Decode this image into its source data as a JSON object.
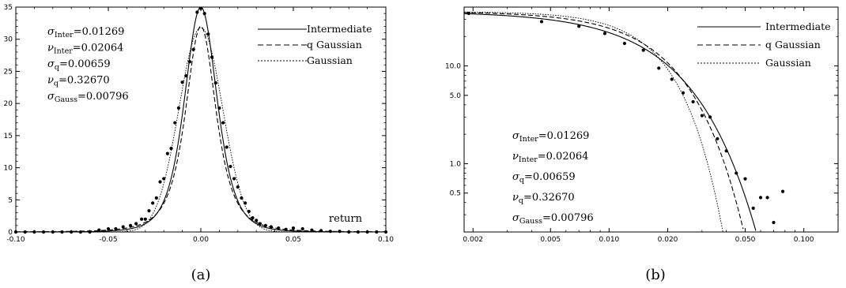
{
  "chart_data": [
    {
      "type": "line",
      "panel": "a",
      "caption": "(a)",
      "xlabel": "return",
      "ylabel": "",
      "xlim": [
        -0.1,
        0.1
      ],
      "ylim": [
        0,
        35
      ],
      "x_ticks": [
        "-0.10",
        "-0.05",
        "0.00",
        "0.05",
        "0.10"
      ],
      "y_ticks": [
        "0",
        "5",
        "10",
        "15",
        "20",
        "25",
        "30",
        "35"
      ],
      "legend_position": "top-right",
      "annotations": [
        {
          "sym": "σ",
          "sub": "Inter",
          "value": "=0.01269"
        },
        {
          "sym": "ν",
          "sub": "Inter",
          "value": "=0.02064"
        },
        {
          "sym": "σ",
          "sub": "q",
          "value": "=0.00659"
        },
        {
          "sym": "ν",
          "sub": "q",
          "value": "=0.32670"
        },
        {
          "sym": "σ",
          "sub": "Gauss",
          "value": "=0.00796"
        }
      ],
      "params": {
        "sigma_inter": 0.01269,
        "nu_inter": 0.02064,
        "sigma_q": 0.00659,
        "nu_q": 0.3267,
        "sigma_gauss": 0.00796
      },
      "series": [
        {
          "name": "Intermediate",
          "style": "solid"
        },
        {
          "name": "q Gaussian",
          "style": "dashed"
        },
        {
          "name": "Gaussian",
          "style": "dotted"
        }
      ],
      "points": {
        "x": [
          -0.1,
          -0.095,
          -0.09,
          -0.085,
          -0.08,
          -0.075,
          -0.07,
          -0.065,
          -0.06,
          -0.055,
          -0.05,
          -0.046,
          -0.042,
          -0.038,
          -0.035,
          -0.032,
          -0.03,
          -0.028,
          -0.026,
          -0.024,
          -0.022,
          -0.02,
          -0.018,
          -0.016,
          -0.014,
          -0.012,
          -0.01,
          -0.008,
          -0.006,
          -0.004,
          -0.002,
          0.0,
          0.002,
          0.004,
          0.006,
          0.008,
          0.01,
          0.012,
          0.014,
          0.016,
          0.018,
          0.02,
          0.022,
          0.024,
          0.026,
          0.028,
          0.03,
          0.032,
          0.035,
          0.038,
          0.042,
          0.046,
          0.05,
          0.055,
          0.06,
          0.065,
          0.07,
          0.075,
          0.08,
          0.085,
          0.09,
          0.095,
          0.1
        ],
        "y": [
          0,
          0,
          0,
          0,
          0,
          0,
          0,
          0,
          0,
          0.3,
          0.5,
          0.5,
          0.8,
          1.0,
          1.3,
          2.0,
          2.0,
          3.3,
          4.5,
          5.3,
          7.8,
          8.3,
          12.2,
          13.0,
          17.0,
          19.3,
          23.3,
          24.3,
          26.5,
          28.4,
          34.2,
          34.8,
          34.0,
          30.8,
          27.2,
          23.2,
          19.3,
          17.0,
          13.2,
          10.2,
          8.3,
          7.0,
          5.3,
          4.5,
          3.2,
          2.2,
          1.8,
          1.3,
          1.0,
          0.8,
          0.6,
          0.4,
          0.6,
          0.5,
          0.3,
          0.2,
          0.1,
          0.1,
          0,
          0,
          0,
          0,
          0
        ]
      }
    },
    {
      "type": "line",
      "panel": "b",
      "caption": "(b)",
      "xlabel": "",
      "ylabel": "",
      "xscale": "log",
      "yscale": "log",
      "xlim": [
        0.0018,
        0.15
      ],
      "ylim": [
        0.2,
        40
      ],
      "x_ticks": [
        "0.002",
        "0.005",
        "0.010",
        "0.020",
        "0.050",
        "0.100"
      ],
      "y_ticks": [
        "0.5",
        "1.0",
        "5.0",
        "10.0"
      ],
      "legend_position": "top-right",
      "annotations": [
        {
          "sym": "σ",
          "sub": "Inter",
          "value": "=0.01269"
        },
        {
          "sym": "ν",
          "sub": "Inter",
          "value": "=0.02064"
        },
        {
          "sym": "σ",
          "sub": "q",
          "value": "=0.00659"
        },
        {
          "sym": "ν",
          "sub": "q",
          "value": "=0.32670"
        },
        {
          "sym": "σ",
          "sub": "Gauss",
          "value": "=0.00796"
        }
      ],
      "series": [
        {
          "name": "Intermediate",
          "style": "solid"
        },
        {
          "name": "q Gaussian",
          "style": "dashed"
        },
        {
          "name": "Gaussian",
          "style": "dotted"
        }
      ],
      "points": {
        "x": [
          0.0019,
          0.0045,
          0.007,
          0.0095,
          0.012,
          0.015,
          0.018,
          0.021,
          0.024,
          0.027,
          0.03,
          0.033,
          0.036,
          0.04,
          0.045,
          0.05,
          0.055,
          0.06,
          0.065,
          0.07,
          0.078
        ],
        "y": [
          34.5,
          28.4,
          25.5,
          21.5,
          17.0,
          14.5,
          9.5,
          7.3,
          5.3,
          4.3,
          3.1,
          3.0,
          1.8,
          1.35,
          0.8,
          0.7,
          0.35,
          0.45,
          0.45,
          0.25,
          0.52
        ]
      }
    }
  ]
}
